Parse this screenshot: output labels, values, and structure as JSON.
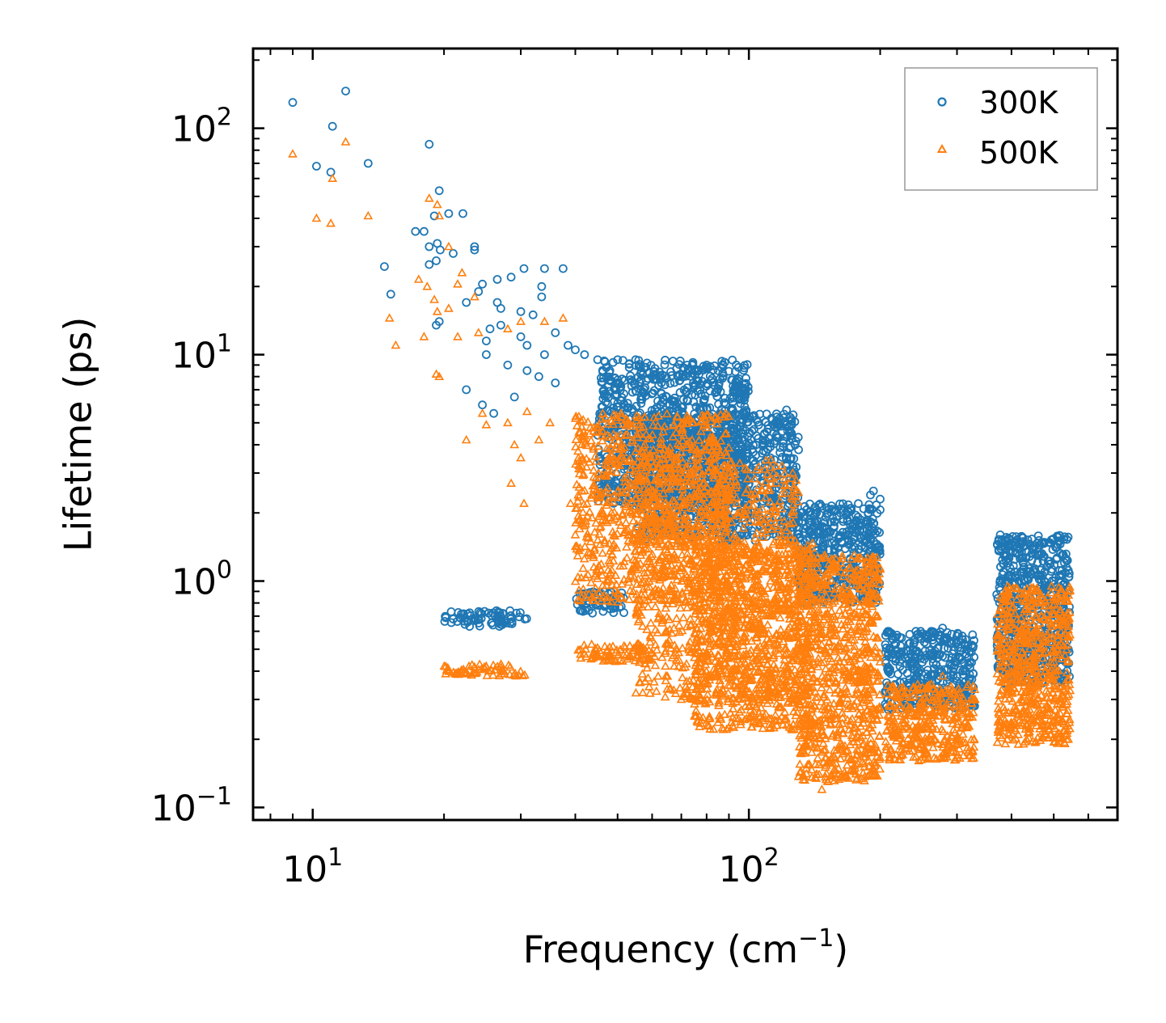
{
  "chart_data": {
    "type": "scatter",
    "title": "",
    "xlabel": "Frequency (cm",
    "xlabel_sup": "−1",
    "xlabel_tail": ")",
    "ylabel": "Lifetime (ps)",
    "xscale": "log",
    "yscale": "log",
    "xlim": [
      7.3,
      700
    ],
    "ylim": [
      0.088,
      225
    ],
    "x_ticks": [
      {
        "value": 10,
        "base": "10",
        "exp": "1"
      },
      {
        "value": 100,
        "base": "10",
        "exp": "2"
      }
    ],
    "y_ticks": [
      {
        "value": 0.1,
        "base": "10",
        "exp": "−1"
      },
      {
        "value": 1,
        "base": "10",
        "exp": "0"
      },
      {
        "value": 10,
        "base": "10",
        "exp": "1"
      },
      {
        "value": 100,
        "base": "10",
        "exp": "2"
      }
    ],
    "legend_position": "upper right",
    "series": [
      {
        "name": "300K",
        "marker": "circle",
        "color": "#1f77b4",
        "points": [
          [
            9.0,
            130
          ],
          [
            10.2,
            68
          ],
          [
            11.1,
            102
          ],
          [
            11.0,
            64
          ],
          [
            11.9,
            146
          ],
          [
            13.4,
            70
          ],
          [
            18.5,
            85
          ],
          [
            19.5,
            53
          ],
          [
            20.5,
            42
          ],
          [
            19,
            41
          ],
          [
            17.2,
            35
          ],
          [
            18,
            35
          ],
          [
            18.5,
            30
          ],
          [
            19.3,
            31
          ],
          [
            19.6,
            29
          ],
          [
            21,
            28
          ],
          [
            22.1,
            42
          ],
          [
            23.5,
            30
          ],
          [
            23.5,
            29
          ],
          [
            14.6,
            24.5
          ],
          [
            15.1,
            18.5
          ],
          [
            18.5,
            25
          ],
          [
            19.2,
            26
          ],
          [
            24.5,
            20.5
          ],
          [
            26.5,
            21.5
          ],
          [
            28.5,
            22
          ],
          [
            30.5,
            24
          ],
          [
            34,
            24
          ],
          [
            37.5,
            24
          ],
          [
            33.5,
            20
          ],
          [
            33.5,
            18
          ],
          [
            24,
            19
          ],
          [
            26.5,
            17
          ],
          [
            27,
            16
          ],
          [
            30,
            15.5
          ],
          [
            32,
            15
          ],
          [
            19.5,
            14
          ],
          [
            19.2,
            13.5
          ],
          [
            22.5,
            17
          ],
          [
            25.5,
            13
          ],
          [
            27,
            13.5
          ],
          [
            25,
            11.5
          ],
          [
            25,
            10
          ],
          [
            36,
            12.5
          ],
          [
            38.5,
            11
          ],
          [
            40,
            10.5
          ],
          [
            42,
            10
          ],
          [
            45,
            9.5
          ],
          [
            30,
            12
          ],
          [
            31,
            11
          ],
          [
            34,
            10
          ],
          [
            22.5,
            7
          ],
          [
            26,
            5.5
          ],
          [
            28,
            9
          ],
          [
            31,
            8.5
          ],
          [
            33,
            8
          ],
          [
            36,
            7.5
          ],
          [
            24.5,
            6
          ],
          [
            29,
            6.5
          ],
          [
            48,
            8.5
          ],
          [
            50,
            9.5
          ],
          [
            55,
            9.5
          ],
          [
            58,
            8.8
          ],
          [
            60,
            8
          ],
          [
            63,
            7.5
          ],
          [
            69,
            8
          ],
          [
            75,
            8.5
          ],
          [
            80,
            9
          ],
          [
            85,
            8.5
          ],
          [
            122,
            5.7
          ],
          [
            130,
            3.8
          ],
          [
            143,
            2.0
          ],
          [
            162,
            2.0
          ],
          [
            190,
            2.4
          ],
          [
            193,
            2.5
          ],
          [
            200,
            2.3
          ],
          [
            222,
            0.42
          ],
          [
            262,
            0.6
          ],
          [
            278,
            0.62
          ],
          [
            300,
            0.38
          ],
          [
            322,
            0.3
          ],
          [
            377,
            1.6
          ],
          [
            392,
            1.05
          ],
          [
            420,
            1.1
          ],
          [
            455,
            0.8
          ],
          [
            540,
            0.5
          ],
          [
            520,
            0.45
          ]
        ],
        "clusters": [
          {
            "x": [
              20,
              31
            ],
            "y": [
              0.63,
              0.74
            ]
          },
          {
            "x": [
              40,
              52
            ],
            "y": [
              0.72,
              0.9
            ]
          },
          {
            "x": [
              45,
              100
            ],
            "y": [
              2.2,
              9.5
            ]
          },
          {
            "x": [
              55,
              130
            ],
            "y": [
              1.5,
              5.5
            ]
          },
          {
            "x": [
              130,
              200
            ],
            "y": [
              0.8,
              2.2
            ]
          },
          {
            "x": [
              205,
              330
            ],
            "y": [
              0.27,
              0.6
            ]
          },
          {
            "x": [
              370,
              545
            ],
            "y": [
              0.35,
              1.6
            ]
          }
        ]
      },
      {
        "name": "500K",
        "marker": "triangle",
        "color": "#ff7f0e",
        "points": [
          [
            9.0,
            77
          ],
          [
            10.2,
            40
          ],
          [
            11.1,
            60
          ],
          [
            11.0,
            38
          ],
          [
            11.9,
            87
          ],
          [
            13.4,
            41
          ],
          [
            18.5,
            49
          ],
          [
            19.3,
            46
          ],
          [
            19.5,
            41
          ],
          [
            20.5,
            30
          ],
          [
            17.5,
            21.5
          ],
          [
            18.3,
            20
          ],
          [
            19,
            17.5
          ],
          [
            19.3,
            15.5
          ],
          [
            20.5,
            16
          ],
          [
            21.5,
            20.5
          ],
          [
            22,
            23
          ],
          [
            23.5,
            18
          ],
          [
            15,
            14.5
          ],
          [
            15.5,
            11
          ],
          [
            18,
            12
          ],
          [
            21.5,
            12
          ],
          [
            24,
            12.5
          ],
          [
            28,
            13
          ],
          [
            30,
            14
          ],
          [
            34,
            14
          ],
          [
            37.5,
            14.5
          ],
          [
            19.2,
            8.2
          ],
          [
            19.5,
            8
          ],
          [
            22.5,
            4.2
          ],
          [
            24.5,
            5.5
          ],
          [
            25,
            4.9
          ],
          [
            28,
            5
          ],
          [
            31,
            5.6
          ],
          [
            29,
            4
          ],
          [
            30,
            3.5
          ],
          [
            28.5,
            2.7
          ],
          [
            30.5,
            2.2
          ],
          [
            33,
            4.2
          ],
          [
            35,
            5
          ],
          [
            39,
            2.2
          ],
          [
            40,
            1.6
          ],
          [
            41,
            1.4
          ],
          [
            44,
            1.3
          ],
          [
            45,
            1.1
          ],
          [
            70,
            0.3
          ],
          [
            72,
            0.32
          ],
          [
            80,
            0.35
          ],
          [
            147,
            0.12
          ],
          [
            152,
            0.13
          ],
          [
            190,
            1.1
          ],
          [
            197,
            1.05
          ],
          [
            224,
            0.18
          ],
          [
            262,
            0.35
          ],
          [
            278,
            0.38
          ],
          [
            300,
            0.2
          ],
          [
            322,
            0.17
          ],
          [
            380,
            0.65
          ],
          [
            392,
            0.95
          ],
          [
            430,
            0.75
          ],
          [
            455,
            0.4
          ],
          [
            520,
            0.3
          ],
          [
            540,
            0.2
          ]
        ],
        "clusters": [
          {
            "x": [
              20,
              31
            ],
            "y": [
              0.38,
              0.43
            ]
          },
          {
            "x": [
              40,
              60
            ],
            "y": [
              0.44,
              0.53
            ]
          },
          {
            "x": [
              40,
              90
            ],
            "y": [
              0.8,
              5.5
            ]
          },
          {
            "x": [
              55,
              130
            ],
            "y": [
              0.3,
              3.5
            ]
          },
          {
            "x": [
              75,
              140
            ],
            "y": [
              0.22,
              1.5
            ]
          },
          {
            "x": [
              130,
              200
            ],
            "y": [
              0.13,
              1.3
            ]
          },
          {
            "x": [
              205,
              330
            ],
            "y": [
              0.16,
              0.35
            ]
          },
          {
            "x": [
              370,
              545
            ],
            "y": [
              0.19,
              0.95
            ]
          }
        ]
      }
    ]
  }
}
